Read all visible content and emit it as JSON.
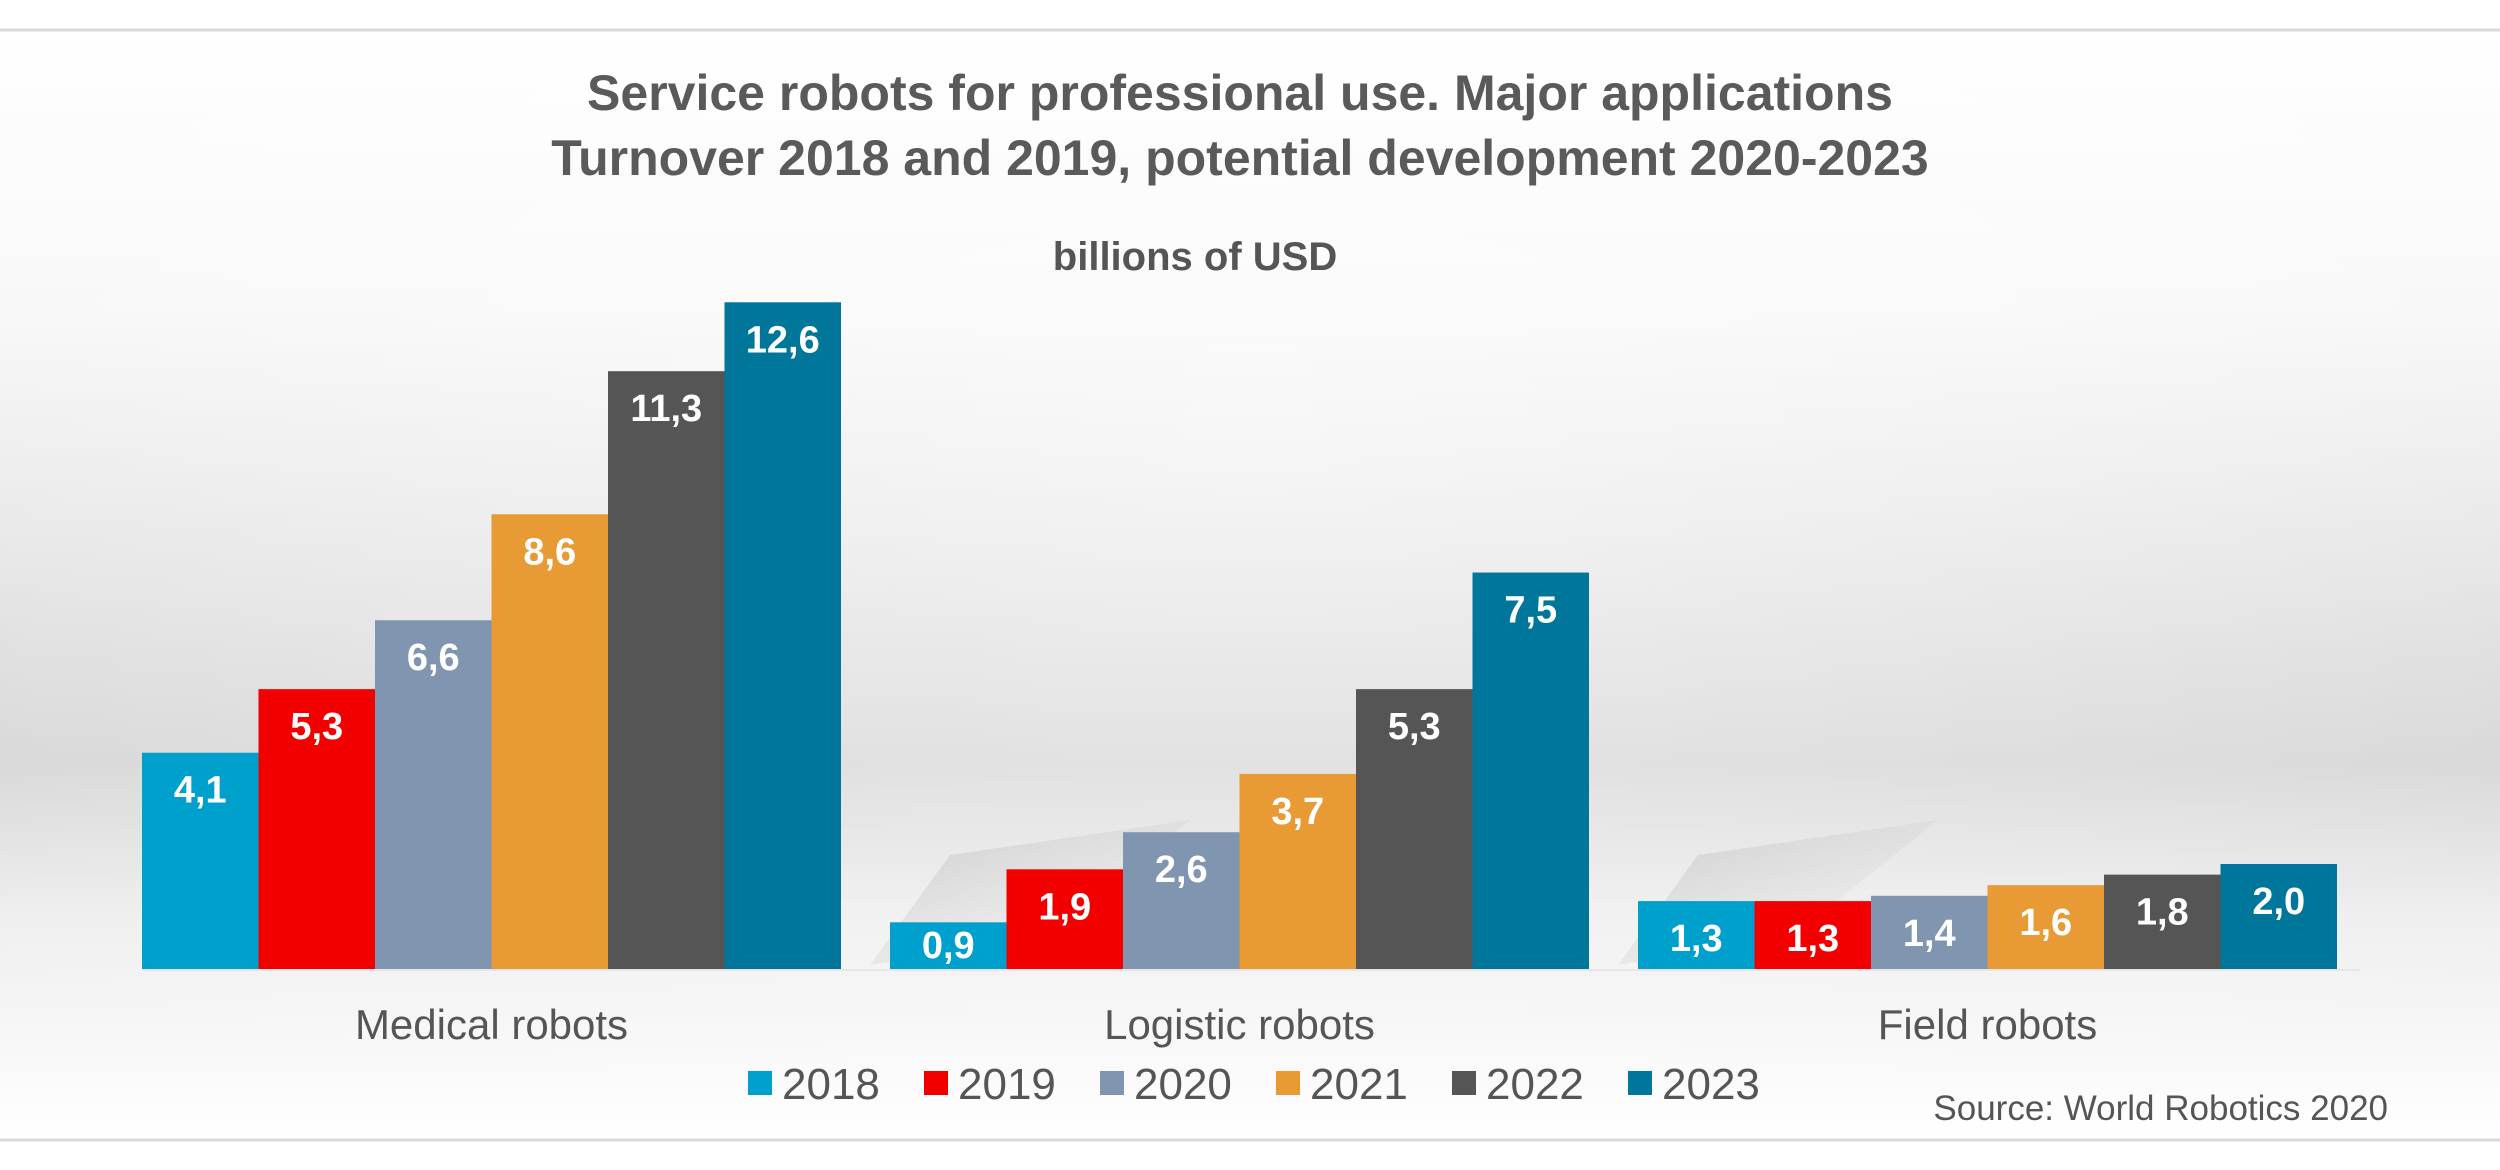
{
  "chart_data": {
    "type": "bar",
    "title_line1": "Service robots for professional use. Major applications",
    "title_line2": "Turnover 2018 and 2019, potential development 2020-2023",
    "unit_label": "billions of USD",
    "categories": [
      "Medical robots",
      "Logistic robots",
      "Field robots"
    ],
    "series": [
      {
        "name": "2018",
        "color": "#00a0cc",
        "values": [
          4.1,
          0.9,
          1.3
        ],
        "labels": [
          "4,1",
          "0,9",
          "1,3"
        ]
      },
      {
        "name": "2019",
        "color": "#f20000",
        "values": [
          5.3,
          1.9,
          1.3
        ],
        "labels": [
          "5,3",
          "1,9",
          "1,3"
        ]
      },
      {
        "name": "2020",
        "color": "#8096b0",
        "values": [
          6.6,
          2.6,
          1.4
        ],
        "labels": [
          "6,6",
          "2,6",
          "1,4"
        ]
      },
      {
        "name": "2021",
        "color": "#e89a34",
        "values": [
          8.6,
          3.7,
          1.6
        ],
        "labels": [
          "8,6",
          "3,7",
          "1,6"
        ]
      },
      {
        "name": "2022",
        "color": "#555555",
        "values": [
          11.3,
          5.3,
          1.8
        ],
        "labels": [
          "11,3",
          "5,3",
          "1,8"
        ]
      },
      {
        "name": "2023",
        "color": "#00779a",
        "values": [
          12.6,
          7.5,
          2.0
        ],
        "labels": [
          "12,6",
          "7,5",
          "2,0"
        ]
      }
    ],
    "ylim": [
      0,
      13
    ],
    "grid": false,
    "legend_position": "bottom",
    "source": "Source: World Robotics 2020"
  }
}
